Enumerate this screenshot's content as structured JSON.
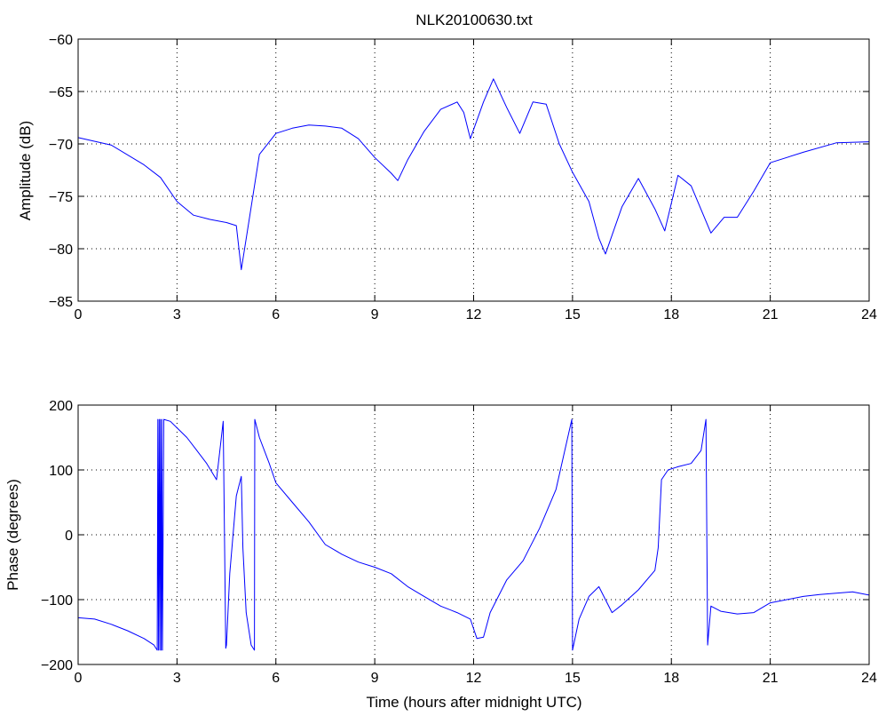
{
  "page": {
    "background": "#ffffff"
  },
  "chart_data": [
    {
      "type": "line",
      "title": "NLK20100630.txt",
      "xlabel": "",
      "ylabel": "Amplitude (dB)",
      "xlim": [
        0,
        24
      ],
      "ylim": [
        -85,
        -60
      ],
      "xticks": [
        0,
        3,
        6,
        9,
        12,
        15,
        18,
        21,
        24
      ],
      "xtick_labels": [
        "0",
        "3",
        "6",
        "9",
        "12",
        "15",
        "18",
        "21",
        "24"
      ],
      "yticks": [
        -85,
        -80,
        -75,
        -70,
        -65,
        -60
      ],
      "ytick_labels": [
        "−85",
        "−80",
        "−75",
        "−70",
        "−65",
        "−60"
      ],
      "grid": true,
      "series": [
        {
          "color": "#0000ff",
          "x": [
            0,
            1,
            2,
            2.5,
            3,
            3.5,
            4,
            4.5,
            4.8,
            4.95,
            5.2,
            5.5,
            6,
            6.5,
            7,
            7.5,
            8,
            8.5,
            9,
            9.5,
            9.7,
            10,
            10.5,
            11,
            11.5,
            11.7,
            11.9,
            12.3,
            12.6,
            13,
            13.4,
            13.8,
            14.2,
            14.6,
            15,
            15.5,
            15.8,
            16,
            16.5,
            17,
            17.5,
            17.8,
            18.2,
            18.6,
            19.2,
            19.6,
            20,
            20.5,
            21,
            22,
            23,
            24
          ],
          "y": [
            -69.4,
            -70.1,
            -72.0,
            -73.2,
            -75.5,
            -76.8,
            -77.2,
            -77.5,
            -77.8,
            -82.0,
            -77.0,
            -71.0,
            -69.0,
            -68.5,
            -68.2,
            -68.3,
            -68.5,
            -69.5,
            -71.3,
            -72.8,
            -73.5,
            -71.5,
            -68.8,
            -66.7,
            -66.0,
            -67.0,
            -69.5,
            -66.0,
            -63.8,
            -66.5,
            -69.0,
            -66.0,
            -66.2,
            -70.0,
            -72.7,
            -75.5,
            -79.0,
            -80.5,
            -76.0,
            -73.3,
            -76.2,
            -78.3,
            -73.0,
            -74.0,
            -78.5,
            -77.0,
            -77.0,
            -74.5,
            -71.8,
            -70.8,
            -69.9,
            -69.8
          ]
        }
      ]
    },
    {
      "type": "line",
      "title": "",
      "xlabel": "Time (hours after midnight UTC)",
      "ylabel": "Phase (degrees)",
      "xlim": [
        0,
        24
      ],
      "ylim": [
        -200,
        200
      ],
      "xticks": [
        0,
        3,
        6,
        9,
        12,
        15,
        18,
        21,
        24
      ],
      "xtick_labels": [
        "0",
        "3",
        "6",
        "9",
        "12",
        "15",
        "18",
        "21",
        "24"
      ],
      "yticks": [
        -200,
        -100,
        0,
        100,
        200
      ],
      "ytick_labels": [
        "−200",
        "−100",
        "0",
        "100",
        "200"
      ],
      "grid": true,
      "series": [
        {
          "color": "#0000ff",
          "x": [
            0,
            0.5,
            1,
            1.5,
            2,
            2.3,
            2.4,
            2.42,
            2.44,
            2.46,
            2.48,
            2.5,
            2.52,
            2.54,
            2.56,
            2.6,
            2.8,
            3,
            3.3,
            3.6,
            3.9,
            4.2,
            4.4,
            4.48,
            4.5,
            4.6,
            4.8,
            4.95,
            5.0,
            5.1,
            5.25,
            5.35,
            5.36,
            5.5,
            5.8,
            6,
            6.5,
            7,
            7.5,
            8,
            8.5,
            9,
            9.5,
            10,
            10.5,
            11,
            11.5,
            11.9,
            12.1,
            12.3,
            12.5,
            13,
            13.5,
            14,
            14.5,
            14.98,
            15.0,
            15.2,
            15.5,
            15.8,
            16.0,
            16.2,
            16.5,
            17,
            17.5,
            17.6,
            17.7,
            17.9,
            18.2,
            18.6,
            18.9,
            19.05,
            19.1,
            19.2,
            19.5,
            20,
            20.5,
            21,
            21.5,
            22,
            22.5,
            23,
            23.5,
            24
          ],
          "y": [
            -128,
            -130,
            -138,
            -148,
            -160,
            -170,
            -178,
            178,
            -178,
            178,
            -178,
            178,
            -178,
            178,
            -178,
            178,
            175,
            165,
            150,
            130,
            110,
            85,
            175,
            -175,
            -170,
            -60,
            60,
            90,
            -20,
            -120,
            -170,
            -178,
            178,
            150,
            110,
            80,
            50,
            20,
            -15,
            -30,
            -42,
            -50,
            -60,
            -80,
            -95,
            -110,
            -120,
            -130,
            -160,
            -158,
            -120,
            -70,
            -40,
            10,
            70,
            178,
            -178,
            -130,
            -95,
            -80,
            -100,
            -120,
            -108,
            -85,
            -55,
            -20,
            85,
            100,
            105,
            110,
            130,
            178,
            -170,
            -110,
            -118,
            -122,
            -120,
            -105,
            -100,
            -95,
            -92,
            -90,
            -88,
            -93
          ]
        }
      ]
    }
  ]
}
